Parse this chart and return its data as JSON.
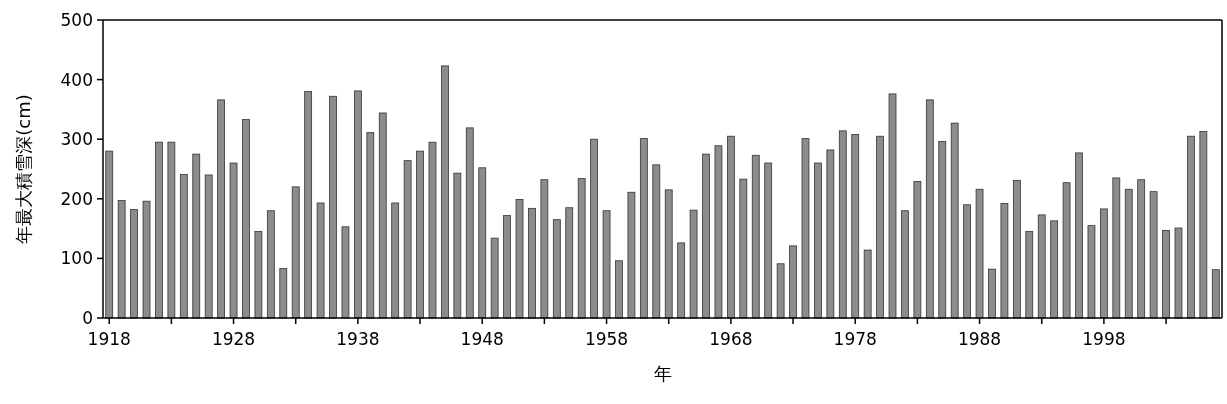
{
  "chart_data": {
    "type": "bar",
    "xlabel": "年",
    "ylabel": "年最大積雪深(cm)",
    "x": [
      1918,
      1919,
      1920,
      1921,
      1922,
      1923,
      1924,
      1925,
      1926,
      1927,
      1928,
      1929,
      1930,
      1931,
      1932,
      1933,
      1934,
      1935,
      1936,
      1937,
      1938,
      1939,
      1940,
      1941,
      1942,
      1943,
      1944,
      1945,
      1946,
      1947,
      1948,
      1949,
      1950,
      1951,
      1952,
      1953,
      1954,
      1955,
      1956,
      1957,
      1958,
      1959,
      1960,
      1961,
      1962,
      1963,
      1964,
      1965,
      1966,
      1967,
      1968,
      1969,
      1970,
      1971,
      1972,
      1973,
      1974,
      1975,
      1976,
      1977,
      1978,
      1979,
      1980,
      1981,
      1982,
      1983,
      1984,
      1985,
      1986,
      1987,
      1988,
      1989,
      1990,
      1991,
      1992,
      1993,
      1994,
      1995,
      1996,
      1997,
      1998,
      1999,
      2000,
      2001,
      2002,
      2003,
      2004,
      2005,
      2006,
      2007
    ],
    "values": [
      280,
      197,
      182,
      196,
      295,
      295,
      241,
      275,
      240,
      366,
      260,
      333,
      145,
      180,
      83,
      220,
      380,
      193,
      372,
      153,
      381,
      311,
      344,
      193,
      264,
      280,
      295,
      423,
      243,
      319,
      252,
      134,
      172,
      199,
      184,
      232,
      165,
      185,
      234,
      300,
      180,
      96,
      211,
      301,
      257,
      215,
      126,
      181,
      275,
      289,
      305,
      233,
      273,
      260,
      91,
      121,
      301,
      260,
      282,
      314,
      308,
      114,
      305,
      376,
      180,
      229,
      366,
      296,
      327,
      190,
      216,
      82,
      192,
      231,
      145,
      173,
      163,
      227,
      277,
      155,
      183,
      235,
      216,
      232,
      212,
      147,
      151,
      305,
      313,
      81
    ],
    "color": "#8c8c8c",
    "xlim": [
      1917.5,
      2007.5
    ],
    "xticks": [
      1918,
      {
        "value": 1923,
        "label": null
      },
      1928,
      {
        "value": 1933,
        "label": null
      },
      1938,
      {
        "value": 1943,
        "label": null
      },
      1948,
      {
        "value": 1953,
        "label": null
      },
      1958,
      {
        "value": 1963,
        "label": null
      },
      1968,
      {
        "value": 1973,
        "label": null
      },
      1978,
      {
        "value": 1983,
        "label": null
      },
      1988,
      {
        "value": 1993,
        "label": null
      },
      1998,
      {
        "value": 2003,
        "label": null
      }
    ],
    "ylim": [
      0,
      500
    ],
    "yticks": [
      0,
      100,
      200,
      300,
      400,
      500
    ],
    "grid": false
  }
}
